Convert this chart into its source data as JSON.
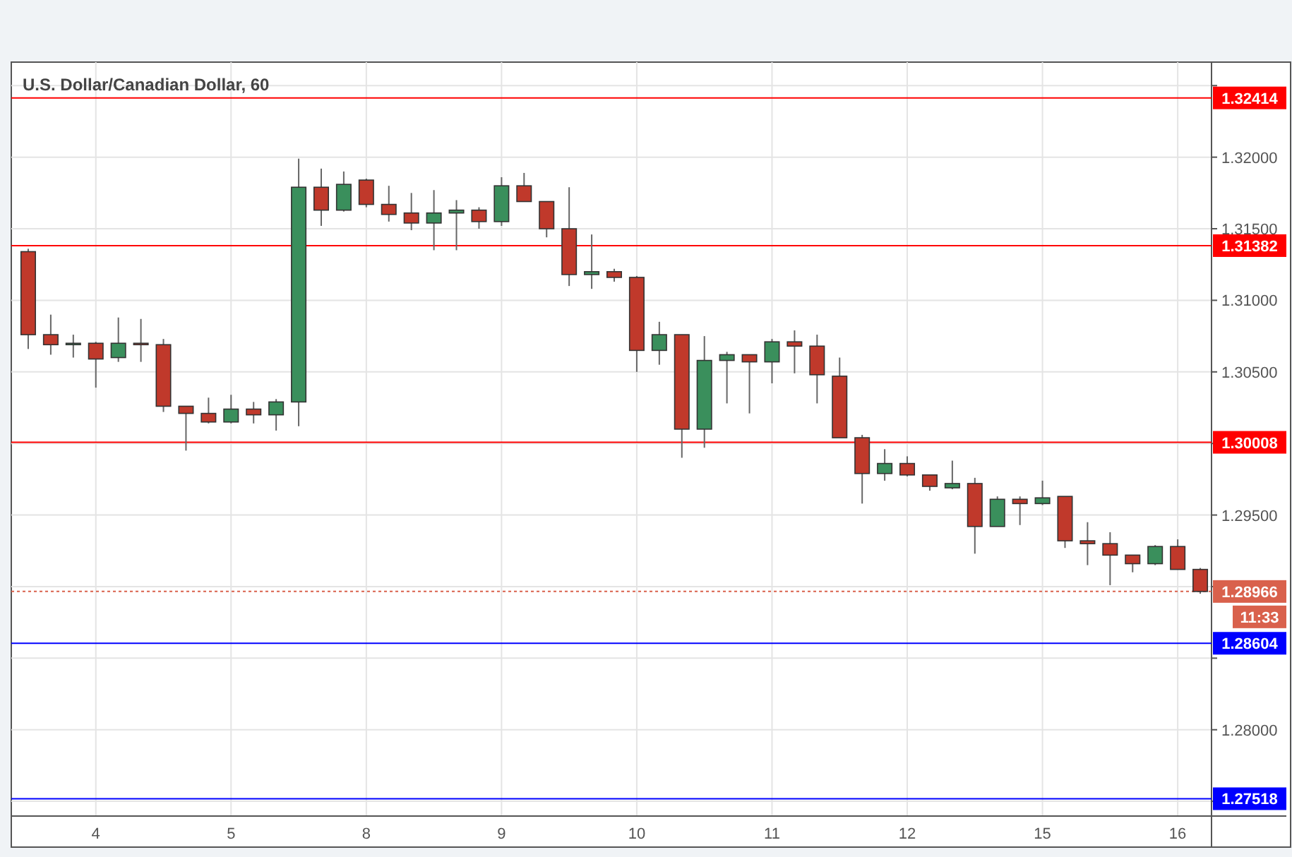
{
  "chart_data": {
    "type": "candlestick",
    "title": "U.S. Dollar/Canadian Dollar, 60",
    "categories": [
      null,
      null,
      null,
      "4",
      null,
      null,
      null,
      null,
      null,
      "5",
      null,
      null,
      null,
      null,
      null,
      "8",
      null,
      null,
      null,
      null,
      null,
      "9",
      null,
      null,
      null,
      null,
      null,
      "10",
      null,
      null,
      null,
      null,
      null,
      "11",
      null,
      null,
      null,
      null,
      null,
      "12",
      null,
      null,
      null,
      null,
      null,
      "15",
      null,
      null,
      null,
      null,
      null,
      "16",
      null
    ],
    "ohlc": [
      [
        1.3134,
        1.3136,
        1.3066,
        1.3076
      ],
      [
        1.3076,
        1.309,
        1.3062,
        1.3069
      ],
      [
        1.3069,
        1.3076,
        1.306,
        1.307
      ],
      [
        1.307,
        1.3071,
        1.3039,
        1.3059
      ],
      [
        1.306,
        1.3088,
        1.3057,
        1.307
      ],
      [
        1.307,
        1.3087,
        1.3057,
        1.3069
      ],
      [
        1.3069,
        1.3073,
        1.3022,
        1.3026
      ],
      [
        1.3026,
        1.3026,
        1.2995,
        1.3021
      ],
      [
        1.3021,
        1.3032,
        1.3014,
        1.3015
      ],
      [
        1.3015,
        1.3034,
        1.3014,
        1.3024
      ],
      [
        1.3024,
        1.3029,
        1.3014,
        1.302
      ],
      [
        1.302,
        1.3031,
        1.3009,
        1.3029
      ],
      [
        1.3029,
        1.3199,
        1.3012,
        1.3179
      ],
      [
        1.3179,
        1.3192,
        1.3152,
        1.3163
      ],
      [
        1.3163,
        1.319,
        1.3162,
        1.3181
      ],
      [
        1.3184,
        1.3185,
        1.3165,
        1.3167
      ],
      [
        1.3167,
        1.318,
        1.3155,
        1.316
      ],
      [
        1.3161,
        1.3175,
        1.3149,
        1.3154
      ],
      [
        1.3154,
        1.3177,
        1.3135,
        1.3161
      ],
      [
        1.3161,
        1.317,
        1.3135,
        1.3163
      ],
      [
        1.3163,
        1.3165,
        1.315,
        1.3155
      ],
      [
        1.3155,
        1.3186,
        1.3152,
        1.318
      ],
      [
        1.318,
        1.3189,
        1.3169,
        1.3169
      ],
      [
        1.3169,
        1.3169,
        1.3144,
        1.315
      ],
      [
        1.315,
        1.3179,
        1.311,
        1.3118
      ],
      [
        1.3118,
        1.3146,
        1.3108,
        1.312
      ],
      [
        1.312,
        1.3122,
        1.3113,
        1.3116
      ],
      [
        1.3116,
        1.3117,
        1.305,
        1.3065
      ],
      [
        1.3065,
        1.3085,
        1.3055,
        1.3076
      ],
      [
        1.3076,
        1.3076,
        1.299,
        1.301
      ],
      [
        1.301,
        1.3075,
        1.2997,
        1.3058
      ],
      [
        1.3058,
        1.3064,
        1.3028,
        1.3062
      ],
      [
        1.3062,
        1.3062,
        1.3021,
        1.3057
      ],
      [
        1.3057,
        1.3073,
        1.3042,
        1.3071
      ],
      [
        1.3071,
        1.3079,
        1.3049,
        1.3068
      ],
      [
        1.3068,
        1.3076,
        1.3028,
        1.3048
      ],
      [
        1.3047,
        1.306,
        1.3004,
        1.3004
      ],
      [
        1.3004,
        1.3006,
        1.2958,
        1.2979
      ],
      [
        1.2979,
        1.2996,
        1.2974,
        1.2986
      ],
      [
        1.2986,
        1.2991,
        1.2977,
        1.2978
      ],
      [
        1.2978,
        1.2978,
        1.2967,
        1.297
      ],
      [
        1.2969,
        1.2988,
        1.2968,
        1.2972
      ],
      [
        1.2972,
        1.2976,
        1.2923,
        1.2942
      ],
      [
        1.2942,
        1.2963,
        1.2942,
        1.2961
      ],
      [
        1.2961,
        1.2963,
        1.2943,
        1.2958
      ],
      [
        1.2958,
        1.2974,
        1.2957,
        1.2962
      ],
      [
        1.2963,
        1.2963,
        1.2927,
        1.2932
      ],
      [
        1.2932,
        1.2945,
        1.2915,
        1.293
      ],
      [
        1.293,
        1.2938,
        1.2901,
        1.2922
      ],
      [
        1.2922,
        1.2922,
        1.291,
        1.2916
      ],
      [
        1.2916,
        1.2929,
        1.2915,
        1.2928
      ],
      [
        1.2928,
        1.2933,
        1.2912,
        1.2912
      ],
      [
        1.2912,
        1.2913,
        1.2895,
        1.28966
      ]
    ],
    "colors": [
      "#c0392b",
      "#c0392b",
      "#3a8f5c",
      "#c0392b",
      "#3a8f5c",
      "#c0392b",
      "#c0392b",
      "#c0392b",
      "#c0392b",
      "#3a8f5c",
      "#c0392b",
      "#3a8f5c",
      "#3a8f5c",
      "#c0392b",
      "#3a8f5c",
      "#c0392b",
      "#c0392b",
      "#c0392b",
      "#3a8f5c",
      "#3a8f5c",
      "#c0392b",
      "#3a8f5c",
      "#c0392b",
      "#c0392b",
      "#c0392b",
      "#3a8f5c",
      "#c0392b",
      "#c0392b",
      "#3a8f5c",
      "#c0392b",
      "#3a8f5c",
      "#3a8f5c",
      "#c0392b",
      "#3a8f5c",
      "#c0392b",
      "#c0392b",
      "#c0392b",
      "#c0392b",
      "#3a8f5c",
      "#c0392b",
      "#c0392b",
      "#3a8f5c",
      "#c0392b",
      "#3a8f5c",
      "#c0392b",
      "#3a8f5c",
      "#c0392b",
      "#c0392b",
      "#c0392b",
      "#c0392b",
      "#3a8f5c",
      "#c0392b",
      "#c0392b"
    ],
    "ylim": [
      1.27397,
      1.32664
    ],
    "yticks": [
      {
        "value": 1.275,
        "label": null
      },
      {
        "value": 1.28,
        "label": "1.28000"
      },
      {
        "value": 1.285,
        "label": null
      },
      {
        "value": 1.29,
        "label": null
      },
      {
        "value": 1.295,
        "label": "1.29500"
      },
      {
        "value": 1.3,
        "label": null
      },
      {
        "value": 1.305,
        "label": "1.30500"
      },
      {
        "value": 1.31,
        "label": "1.31000"
      },
      {
        "value": 1.315,
        "label": "1.31500"
      },
      {
        "value": 1.32,
        "label": "1.32000"
      },
      {
        "value": 1.325,
        "label": null
      }
    ],
    "ref_lines": [
      {
        "axis": "y",
        "value": 1.32414,
        "label": "1.32414",
        "color": "#ff0000"
      },
      {
        "axis": "y",
        "value": 1.31382,
        "label": "1.31382",
        "color": "#ff0000"
      },
      {
        "axis": "y",
        "value": 1.30008,
        "label": "1.30008",
        "color": "#ff0000"
      },
      {
        "axis": "y",
        "value": 1.28966,
        "label": "1.28966",
        "color": "#d9614c",
        "line_style": "dotted"
      },
      {
        "axis": "y",
        "value": 1.28604,
        "label": "1.28604",
        "color": "#0000ff"
      },
      {
        "axis": "y",
        "value": 1.27518,
        "label": "1.27518",
        "color": "#0000ff"
      }
    ],
    "annotations": [
      "11:33"
    ],
    "grid": true
  }
}
